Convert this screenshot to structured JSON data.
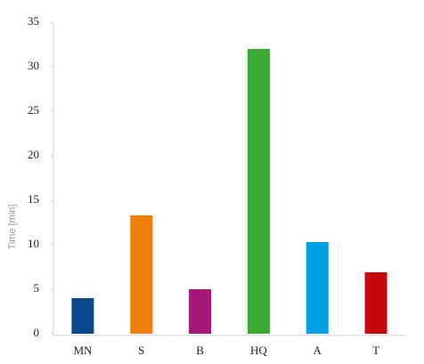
{
  "chart_data": {
    "type": "bar",
    "y_label": "Time  [min]",
    "categories": [
      "MN",
      "S",
      "B",
      "HQ",
      "A",
      "T"
    ],
    "values": [
      4.0,
      13.3,
      5.0,
      32.0,
      10.3,
      6.9
    ],
    "colors": [
      "#0a4a8c",
      "#f07f09",
      "#a6177a",
      "#3aaa35",
      "#009fe3",
      "#c8060e"
    ],
    "ylim": [
      0,
      35
    ],
    "yticks": [
      0,
      5,
      10,
      15,
      20,
      25,
      30,
      35
    ],
    "grid": false
  }
}
